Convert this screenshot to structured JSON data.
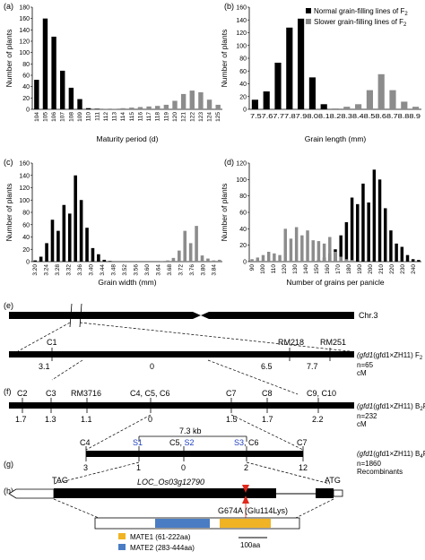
{
  "figure": {
    "colors": {
      "normal": "#000000",
      "slower": "#8c8c8c",
      "mate1": "#f0b324",
      "mate2": "#4a7cc4",
      "arrow": "#e0281c",
      "blue_text": "#1f3fbf"
    },
    "chart_data": [
      {
        "type": "bar",
        "panel_label": "(a)",
        "xlabel": "Maturity period (d)",
        "ylabel": "Number of plants",
        "ylim": [
          0,
          180
        ],
        "yticks": [
          "0",
          "20",
          "40",
          "60",
          "80",
          "100",
          "120",
          "140",
          "160",
          "180"
        ],
        "categories": [
          "104",
          "105",
          "106",
          "107",
          "108",
          "109",
          "110",
          "111",
          "112",
          "113",
          "114",
          "115",
          "116",
          "117",
          "118",
          "119",
          "120",
          "121",
          "122",
          "123",
          "124",
          "125"
        ],
        "series": [
          {
            "name": "Normal grain-filling lines of F2",
            "values": [
              52,
              160,
              128,
              68,
              38,
              18,
              2,
              1,
              0,
              0,
              0,
              0,
              0,
              0,
              0,
              0,
              0,
              0,
              0,
              0,
              0,
              0
            ]
          },
          {
            "name": "Slower grain-filling lines of F2",
            "values": [
              0,
              0,
              0,
              0,
              0,
              0,
              0,
              0,
              1,
              1,
              2,
              3,
              4,
              5,
              6,
              8,
              15,
              27,
              33,
              30,
              17,
              8
            ]
          }
        ]
      },
      {
        "type": "bar",
        "panel_label": "(b)",
        "xlabel": "Grain length (mm)",
        "ylabel": "Number of plants",
        "ylim": [
          0,
          160
        ],
        "yticks": [
          "0",
          "20",
          "40",
          "60",
          "80",
          "100",
          "120",
          "140",
          "160"
        ],
        "categories": [
          "7.5",
          "7.6",
          "7.7",
          "7.8",
          "7.9",
          "8.0",
          "8.1",
          "8.2",
          "8.3",
          "8.4",
          "8.5",
          "8.6",
          "8.7",
          "8.8",
          "8.9"
        ],
        "xtick_text": "7.57.67.77.87.98.08.18.28.38.48.58.68.78.88.9",
        "legend": [
          "Normal grain-filling lines of F",
          "Slower grain-filling lines of F"
        ],
        "legend_sub": "2",
        "series": [
          {
            "name": "Normal grain-filling lines of F2",
            "values": [
              15,
              28,
              73,
              128,
              142,
              50,
              8,
              1,
              0,
              0,
              0,
              0,
              0,
              0,
              0
            ]
          },
          {
            "name": "Slower grain-filling lines of F2",
            "values": [
              0,
              0,
              0,
              0,
              0,
              0,
              0,
              1,
              4,
              8,
              30,
              55,
              30,
              12,
              4
            ]
          }
        ]
      },
      {
        "type": "bar",
        "panel_label": "(c)",
        "xlabel": "Grain width (mm)",
        "ylabel": "Number of plants",
        "ylim": [
          0,
          160
        ],
        "yticks": [
          "0",
          "20",
          "40",
          "60",
          "80",
          "100",
          "120",
          "140",
          "160"
        ],
        "categories": [
          "3.20",
          "3.22",
          "3.24",
          "3.26",
          "3.28",
          "3.30",
          "3.32",
          "3.34",
          "3.36",
          "3.38",
          "3.40",
          "3.42",
          "3.44",
          "3.46",
          "3.48",
          "3.50",
          "3.52",
          "3.54",
          "3.56",
          "3.58",
          "3.60",
          "3.62",
          "3.64",
          "3.66",
          "3.68",
          "3.70",
          "3.72",
          "3.74",
          "3.76",
          "3.78",
          "3.80",
          "3.82",
          "3.84"
        ],
        "xtick_labels": [
          "3.20",
          "3.24",
          "3.28",
          "3.32",
          "3.36",
          "3.40",
          "3.44",
          "3.48",
          "3.52",
          "3.56",
          "3.60",
          "3.64",
          "3.68",
          "3.72",
          "3.76",
          "3.80",
          "3.84"
        ],
        "series": [
          {
            "name": "Normal grain-filling lines of F2",
            "values": [
              2,
              8,
              30,
              68,
              50,
              92,
              78,
              140,
              100,
              55,
              22,
              12,
              3,
              1,
              0,
              0,
              0,
              0,
              0,
              0,
              0,
              0,
              0,
              0,
              0,
              0,
              0,
              0,
              0,
              0,
              0,
              0,
              0
            ]
          },
          {
            "name": "Slower grain-filling lines of F2",
            "values": [
              0,
              0,
              0,
              0,
              0,
              0,
              0,
              0,
              0,
              0,
              0,
              0,
              0,
              0,
              0,
              0,
              0,
              0,
              0,
              0,
              0,
              0,
              1,
              2,
              6,
              18,
              50,
              30,
              58,
              10,
              5,
              2,
              3
            ]
          }
        ]
      },
      {
        "type": "bar",
        "panel_label": "(d)",
        "xlabel": "Number of grains per panicle",
        "ylabel": "Number of plants",
        "ylim": [
          0,
          120
        ],
        "yticks": [
          "0",
          "20",
          "40",
          "60",
          "80",
          "100",
          "120"
        ],
        "categories": [
          "90",
          "95",
          "100",
          "105",
          "110",
          "115",
          "120",
          "125",
          "130",
          "135",
          "140",
          "145",
          "150",
          "155",
          "160",
          "165",
          "170",
          "175",
          "180",
          "185",
          "190",
          "195",
          "200",
          "205",
          "210",
          "215",
          "220",
          "225",
          "230",
          "235",
          "240"
        ],
        "xtick_labels": [
          "90",
          "100",
          "110",
          "120",
          "130",
          "140",
          "150",
          "160",
          "170",
          "180",
          "190",
          "200",
          "210",
          "220",
          "230",
          "240"
        ],
        "series": [
          {
            "name": "Normal grain-filling lines of F2",
            "values": [
              0,
              0,
              0,
              0,
              0,
              0,
              0,
              0,
              0,
              0,
              0,
              0,
              2,
              5,
              10,
              15,
              32,
              48,
              78,
              70,
              95,
              72,
              112,
              100,
              65,
              38,
              22,
              18,
              8,
              3,
              2
            ]
          },
          {
            "name": "Slower grain-filling lines of F2",
            "values": [
              3,
              5,
              8,
              12,
              10,
              8,
              40,
              28,
              42,
              32,
              38,
              26,
              25,
              22,
              30,
              12,
              6,
              3,
              2,
              0,
              0,
              0,
              0,
              0,
              0,
              0,
              0,
              0,
              0,
              0,
              0
            ]
          }
        ]
      }
    ],
    "panel_e": {
      "label": "(e)",
      "chromosome": "Chr.3",
      "markers": [
        "C1",
        "RM218",
        "RM251"
      ],
      "distances": [
        "3.1",
        "0",
        "6.5",
        "7.7"
      ],
      "population": "(gfd1×ZH11) F",
      "population_sub": "2",
      "n": "n=65",
      "unit": "cM"
    },
    "panel_f": {
      "label": "(f)",
      "markers": [
        "C2",
        "C3",
        "RM3716",
        "C4, C5, C6",
        "C7",
        "C8",
        "C9, C10"
      ],
      "distances": [
        "1.7",
        "1.3",
        "1.1",
        "0",
        "1.5",
        "1.7",
        "2.2"
      ],
      "population": "(gfd1×ZH11) B",
      "population_sub_b": "2",
      "population_f": "F",
      "population_sub_f": "2",
      "n": "n=232",
      "unit": "cM"
    },
    "panel_g": {
      "label": "(g)",
      "kb": "7.3 kb",
      "markers": [
        "C4",
        "S1",
        "C5, S2",
        "S3, C6",
        "C7"
      ],
      "recombinants": [
        "3",
        "1",
        "0",
        "2",
        "12"
      ],
      "population": "(gfd1×ZH11) B",
      "population_sub_b": "4",
      "population_f": "F",
      "population_sub_f": "2",
      "n": "n=1860",
      "recombinants_label": "Recombinants"
    },
    "panel_h": {
      "label": "(h)",
      "tag": "TAG",
      "atg": "ATG",
      "gene": "LOC_Os03g12790",
      "mutation": "G674A (Glu114Lys)",
      "legend": [
        "MATE1 (61-222aa)",
        "MATE2 (283-444aa)"
      ],
      "scale": "100aa"
    }
  }
}
